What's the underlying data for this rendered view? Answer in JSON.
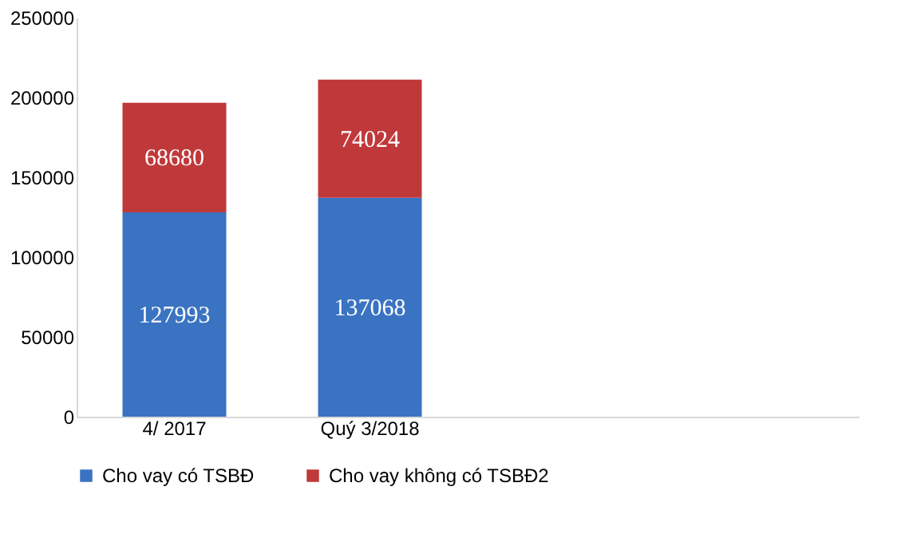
{
  "chart_data": {
    "type": "bar",
    "stacked": true,
    "categories": [
      "4/ 2017",
      "Quý 3/2018",
      null,
      null
    ],
    "series": [
      {
        "name": "Cho vay có TSBĐ",
        "color": "#3a73c2",
        "values": [
          127993,
          137068,
          null,
          null
        ]
      },
      {
        "name": "Cho vay không có TSBĐ2",
        "color": "#c0393a",
        "values": [
          68680,
          74024,
          null,
          null
        ]
      }
    ],
    "ylim": [
      0,
      250000
    ],
    "yticks": [
      0,
      50000,
      100000,
      150000,
      200000,
      250000
    ],
    "grid": false,
    "legend": "bottom",
    "data_labels": true
  }
}
